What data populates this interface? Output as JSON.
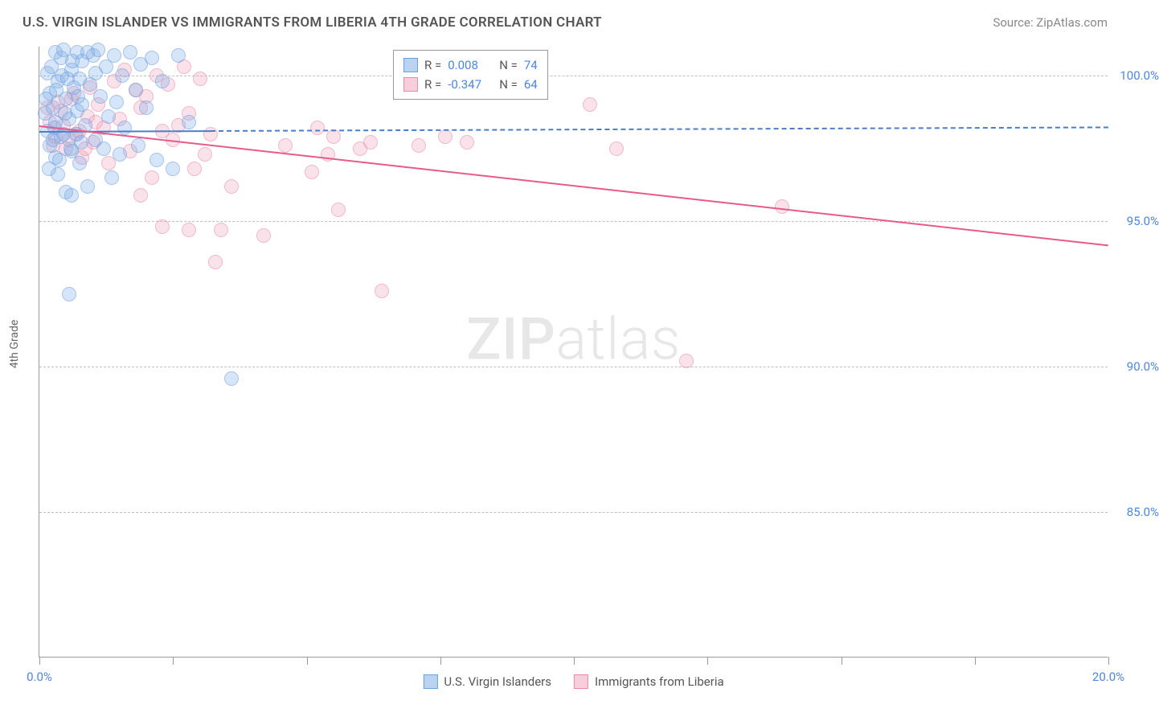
{
  "title": "U.S. VIRGIN ISLANDER VS IMMIGRANTS FROM LIBERIA 4TH GRADE CORRELATION CHART",
  "source": "Source: ZipAtlas.com",
  "y_axis_label": "4th Grade",
  "watermark_bold": "ZIP",
  "watermark_light": "atlas",
  "chart": {
    "type": "scatter",
    "xlim": [
      0,
      20
    ],
    "ylim": [
      80,
      101
    ],
    "x_ticks": [
      0,
      2.5,
      5,
      7.5,
      10,
      12.5,
      15,
      17.5,
      20
    ],
    "x_tick_labels": {
      "0": "0.0%",
      "20": "20.0%"
    },
    "y_gridlines": [
      85,
      90,
      95,
      100
    ],
    "y_tick_labels": {
      "85": "85.0%",
      "90": "90.0%",
      "95": "95.0%",
      "100": "100.0%"
    },
    "colors": {
      "blue_fill": "rgba(130,175,230,0.55)",
      "blue_stroke": "#6b9fe0",
      "blue_line": "#4a7ec8",
      "pink_fill": "rgba(240,160,185,0.5)",
      "pink_stroke": "#e88aac",
      "pink_line": "#e85a8a",
      "grid": "#bfbfbf",
      "axis": "#9a9a9a",
      "tick_label": "#4a86e8",
      "text": "#555555"
    },
    "marker_size": 18,
    "series_blue": {
      "name": "U.S. Virgin Islanders",
      "trend": {
        "x1": 0,
        "y1": 98.1,
        "x2": 20,
        "y2": 98.25,
        "solid_until_x": 3.2
      },
      "points": [
        [
          0.1,
          98.7
        ],
        [
          0.15,
          98.1
        ],
        [
          0.2,
          97.6
        ],
        [
          0.2,
          99.4
        ],
        [
          0.25,
          98.9
        ],
        [
          0.3,
          97.2
        ],
        [
          0.3,
          98.4
        ],
        [
          0.35,
          99.8
        ],
        [
          0.35,
          96.6
        ],
        [
          0.4,
          97.9
        ],
        [
          0.4,
          100.6
        ],
        [
          0.45,
          98.0
        ],
        [
          0.5,
          99.2
        ],
        [
          0.5,
          96.0
        ],
        [
          0.55,
          98.5
        ],
        [
          0.6,
          100.2
        ],
        [
          0.6,
          97.4
        ],
        [
          0.65,
          99.6
        ],
        [
          0.7,
          100.8
        ],
        [
          0.7,
          98.8
        ],
        [
          0.75,
          97.0
        ],
        [
          0.8,
          99.0
        ],
        [
          0.8,
          100.5
        ],
        [
          0.85,
          98.3
        ],
        [
          0.9,
          96.2
        ],
        [
          0.95,
          99.7
        ],
        [
          1.0,
          100.7
        ],
        [
          1.05,
          97.8
        ],
        [
          1.1,
          100.9
        ],
        [
          1.15,
          99.3
        ],
        [
          1.2,
          97.5
        ],
        [
          1.25,
          100.3
        ],
        [
          1.3,
          98.6
        ],
        [
          1.35,
          96.5
        ],
        [
          1.4,
          100.7
        ],
        [
          1.45,
          99.1
        ],
        [
          1.5,
          97.3
        ],
        [
          1.55,
          100.0
        ],
        [
          1.6,
          98.2
        ],
        [
          1.7,
          100.8
        ],
        [
          1.8,
          99.5
        ],
        [
          1.85,
          97.6
        ],
        [
          1.9,
          100.4
        ],
        [
          2.0,
          98.9
        ],
        [
          2.1,
          100.6
        ],
        [
          2.2,
          97.1
        ],
        [
          2.3,
          99.8
        ],
        [
          2.5,
          96.8
        ],
        [
          2.6,
          100.7
        ],
        [
          2.8,
          98.4
        ],
        [
          0.55,
          92.5
        ],
        [
          3.6,
          89.6
        ],
        [
          0.3,
          100.8
        ],
        [
          0.6,
          95.9
        ],
        [
          0.15,
          100.1
        ],
        [
          0.45,
          100.9
        ],
        [
          0.9,
          100.8
        ],
        [
          1.05,
          100.1
        ],
        [
          0.75,
          99.9
        ],
        [
          0.25,
          97.8
        ],
        [
          0.12,
          99.2
        ],
        [
          0.18,
          96.8
        ],
        [
          0.22,
          100.3
        ],
        [
          0.28,
          98.2
        ],
        [
          0.32,
          99.5
        ],
        [
          0.38,
          97.1
        ],
        [
          0.42,
          100.0
        ],
        [
          0.48,
          98.7
        ],
        [
          0.52,
          99.9
        ],
        [
          0.58,
          97.5
        ],
        [
          0.62,
          100.5
        ],
        [
          0.68,
          98.0
        ],
        [
          0.72,
          99.3
        ],
        [
          0.78,
          97.7
        ]
      ]
    },
    "series_pink": {
      "name": "Immigrants from Liberia",
      "trend": {
        "x1": 0,
        "y1": 98.3,
        "x2": 20,
        "y2": 94.2
      },
      "points": [
        [
          0.2,
          98.4
        ],
        [
          0.3,
          97.9
        ],
        [
          0.4,
          98.8
        ],
        [
          0.5,
          97.5
        ],
        [
          0.6,
          99.2
        ],
        [
          0.7,
          98.0
        ],
        [
          0.8,
          97.2
        ],
        [
          0.9,
          98.6
        ],
        [
          1.0,
          97.7
        ],
        [
          1.1,
          99.0
        ],
        [
          1.2,
          98.2
        ],
        [
          1.3,
          97.0
        ],
        [
          1.4,
          99.8
        ],
        [
          1.5,
          98.5
        ],
        [
          1.6,
          100.2
        ],
        [
          1.7,
          97.4
        ],
        [
          1.8,
          99.5
        ],
        [
          1.9,
          98.9
        ],
        [
          2.0,
          99.3
        ],
        [
          2.1,
          96.5
        ],
        [
          2.2,
          100.0
        ],
        [
          2.3,
          98.1
        ],
        [
          2.4,
          99.7
        ],
        [
          2.5,
          97.8
        ],
        [
          2.6,
          98.3
        ],
        [
          2.7,
          100.3
        ],
        [
          2.8,
          98.7
        ],
        [
          2.9,
          96.8
        ],
        [
          3.0,
          99.9
        ],
        [
          3.1,
          97.3
        ],
        [
          3.2,
          98.0
        ],
        [
          3.4,
          94.7
        ],
        [
          3.6,
          96.2
        ],
        [
          1.9,
          95.9
        ],
        [
          2.3,
          94.8
        ],
        [
          2.8,
          94.7
        ],
        [
          3.3,
          93.6
        ],
        [
          4.2,
          94.5
        ],
        [
          4.6,
          97.6
        ],
        [
          5.2,
          98.2
        ],
        [
          5.1,
          96.7
        ],
        [
          5.4,
          97.3
        ],
        [
          5.5,
          97.9
        ],
        [
          5.6,
          95.4
        ],
        [
          6.0,
          97.5
        ],
        [
          6.2,
          97.7
        ],
        [
          6.4,
          92.6
        ],
        [
          7.1,
          97.6
        ],
        [
          7.6,
          97.9
        ],
        [
          8.0,
          97.7
        ],
        [
          10.3,
          99.0
        ],
        [
          10.8,
          97.5
        ],
        [
          12.1,
          90.2
        ],
        [
          13.9,
          95.5
        ],
        [
          0.15,
          98.9
        ],
        [
          0.25,
          97.6
        ],
        [
          0.35,
          99.1
        ],
        [
          0.45,
          98.3
        ],
        [
          0.55,
          97.8
        ],
        [
          0.65,
          99.4
        ],
        [
          0.75,
          98.1
        ],
        [
          0.85,
          97.5
        ],
        [
          0.95,
          99.6
        ],
        [
          1.05,
          98.4
        ]
      ]
    }
  },
  "legend_top": [
    {
      "swatch": "blue",
      "r_label": "R =",
      "r_val": "0.008",
      "n_label": "N =",
      "n_val": "74"
    },
    {
      "swatch": "pink",
      "r_label": "R =",
      "r_val": "-0.347",
      "n_label": "N =",
      "n_val": "64"
    }
  ],
  "legend_bottom": [
    {
      "swatch": "blue",
      "label": "U.S. Virgin Islanders"
    },
    {
      "swatch": "pink",
      "label": "Immigrants from Liberia"
    }
  ]
}
